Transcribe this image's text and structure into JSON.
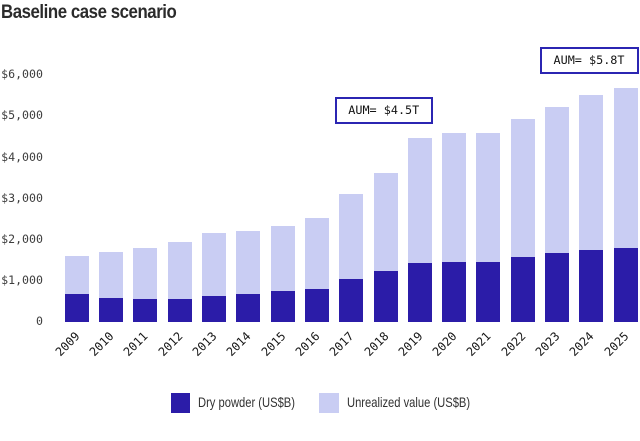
{
  "chart_data": {
    "type": "bar",
    "stacked": true,
    "title": "Baseline case scenario",
    "categories": [
      "2009",
      "2010",
      "2011",
      "2012",
      "2013",
      "2014",
      "2015",
      "2016",
      "2017",
      "2018",
      "2019",
      "2020",
      "2021",
      "2022",
      "2023",
      "2024",
      "2025"
    ],
    "series": [
      {
        "name": "Dry powder (US$B)",
        "color": "#2b1ca8",
        "values": [
          680,
          580,
          560,
          570,
          640,
          670,
          745,
          800,
          1055,
          1240,
          1430,
          1460,
          1465,
          1575,
          1685,
          1750,
          1805
        ]
      },
      {
        "name": "Unrealized value (US$B)",
        "color": "#c9cdf3",
        "values": [
          920,
          1110,
          1240,
          1370,
          1520,
          1530,
          1585,
          1730,
          2045,
          2380,
          3040,
          3130,
          3125,
          3345,
          3545,
          3770,
          3875
        ]
      }
    ],
    "ylabel": "",
    "xlabel": "",
    "ylim": [
      0,
      6000
    ],
    "yticks": [
      {
        "value": 0,
        "label": "0"
      },
      {
        "value": 1000,
        "label": "$1,000"
      },
      {
        "value": 2000,
        "label": "$2,000"
      },
      {
        "value": 3000,
        "label": "$3,000"
      },
      {
        "value": 4000,
        "label": "$4,000"
      },
      {
        "value": 5000,
        "label": "$5,000"
      },
      {
        "value": 6000,
        "label": "$6,000"
      }
    ],
    "grid": false,
    "legend_position": "bottom-center",
    "annotations": [
      {
        "label": "AUM= $4.5T"
      },
      {
        "label": "AUM= $5.8T"
      }
    ]
  },
  "legend": {
    "dry_powder_label": "Dry powder (US$B)",
    "unrealized_label": "Unrealized value (US$B)"
  },
  "colors": {
    "dry_powder": "#2b1ca8",
    "unrealized": "#c9cdf3",
    "annotation_border": "#2b25b2",
    "background": "#ffffff"
  }
}
